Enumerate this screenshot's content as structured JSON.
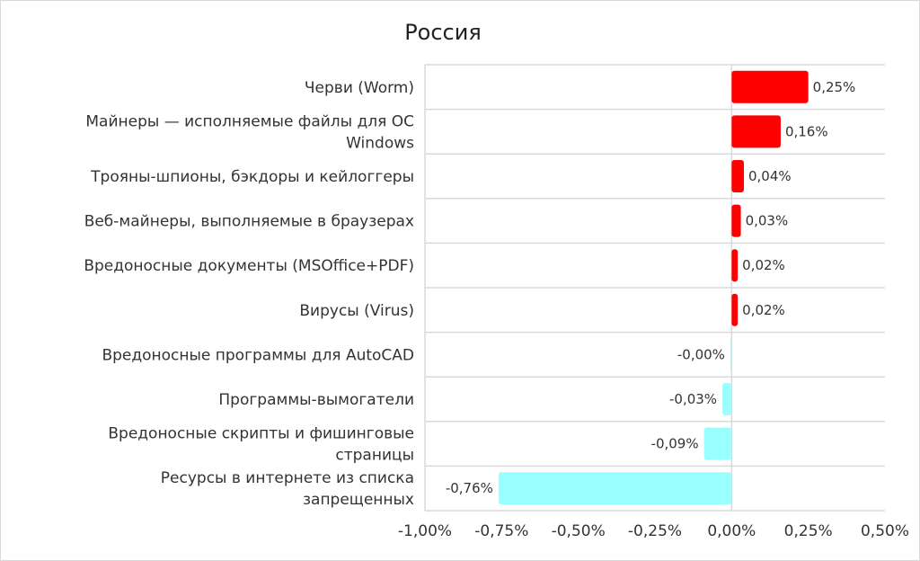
{
  "chart_data": {
    "type": "bar",
    "orientation": "horizontal",
    "title": "Россия",
    "categories": [
      [
        "Черви (Worm)"
      ],
      [
        "Майнеры — исполняемые файлы для ОС",
        "Windows"
      ],
      [
        "Трояны-шпионы, бэкдоры и кейлоггеры"
      ],
      [
        "Веб-майнеры, выполняемые в браузерах"
      ],
      [
        "Вредоносные документы (MSOffice+PDF)"
      ],
      [
        "Вирусы (Virus)"
      ],
      [
        "Вредоносные программы для AutoCAD"
      ],
      [
        "Программы-вымогатели"
      ],
      [
        "Вредоносные скрипты и фишинговые",
        "страницы"
      ],
      [
        "Ресурсы в интернете из списка",
        "запрещенных"
      ]
    ],
    "values": [
      0.25,
      0.16,
      0.04,
      0.03,
      0.02,
      0.02,
      -0.004,
      -0.03,
      -0.09,
      -0.76
    ],
    "data_labels": [
      "0,25%",
      "0,16%",
      "0,04%",
      "0,03%",
      "0,02%",
      "0,02%",
      "-0,00%",
      "-0,03%",
      "-0,09%",
      "-0,76%"
    ],
    "xlim": [
      -1.0,
      0.5
    ],
    "ticks": [
      -1.0,
      -0.75,
      -0.5,
      -0.25,
      0.0,
      0.25,
      0.5
    ],
    "tick_labels": [
      "-1,00%",
      "-0,75%",
      "-0,50%",
      "-0,25%",
      "0,00%",
      "0,25%",
      "0,50%"
    ],
    "grid": true,
    "colors": {
      "positive": "#ff0000",
      "negative": "#99ffff",
      "grid": "#d9d9d9",
      "text": "#333333"
    }
  }
}
